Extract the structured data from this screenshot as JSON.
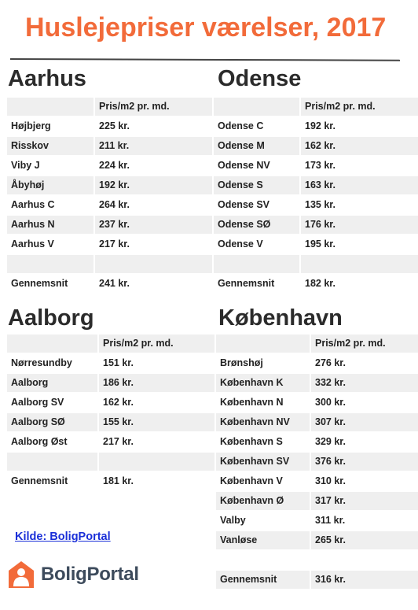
{
  "title": "Huslejepriser værelser, 2017",
  "column_header": "Pris/m2 pr. md.",
  "tables": [
    {
      "city": "Aarhus",
      "rows": [
        {
          "name": "Højbjerg",
          "price": "225 kr."
        },
        {
          "name": "Risskov",
          "price": "211 kr."
        },
        {
          "name": "Viby J",
          "price": "224 kr."
        },
        {
          "name": "Åbyhøj",
          "price": "192 kr."
        },
        {
          "name": "Aarhus C",
          "price": "264 kr."
        },
        {
          "name": "Aarhus N",
          "price": "237 kr."
        },
        {
          "name": "Aarhus V",
          "price": "217 kr."
        },
        {
          "name": "",
          "price": ""
        },
        {
          "name": "Gennemsnit",
          "price": "241 kr."
        }
      ]
    },
    {
      "city": "Odense",
      "rows": [
        {
          "name": "Odense C",
          "price": "192 kr."
        },
        {
          "name": "Odense M",
          "price": "162 kr."
        },
        {
          "name": "Odense NV",
          "price": "173 kr."
        },
        {
          "name": "Odense S",
          "price": "163 kr."
        },
        {
          "name": "Odense SV",
          "price": "135 kr."
        },
        {
          "name": "Odense SØ",
          "price": "176 kr."
        },
        {
          "name": "Odense V",
          "price": "195 kr."
        },
        {
          "name": "",
          "price": ""
        },
        {
          "name": "Gennemsnit",
          "price": "182 kr."
        }
      ]
    },
    {
      "city": "Aalborg",
      "rows": [
        {
          "name": "Nørresundby",
          "price": "151 kr."
        },
        {
          "name": "Aalborg",
          "price": "186 kr."
        },
        {
          "name": "Aalborg SV",
          "price": "162 kr."
        },
        {
          "name": "Aalborg SØ",
          "price": "155 kr."
        },
        {
          "name": "Aalborg Øst",
          "price": "217 kr."
        },
        {
          "name": "",
          "price": ""
        },
        {
          "name": "Gennemsnit",
          "price": "181 kr."
        }
      ]
    },
    {
      "city": "København",
      "rows": [
        {
          "name": "Brønshøj",
          "price": "276 kr."
        },
        {
          "name": "København K",
          "price": "332 kr."
        },
        {
          "name": "København N",
          "price": "300 kr."
        },
        {
          "name": "København NV",
          "price": "307 kr."
        },
        {
          "name": "København S",
          "price": "329 kr."
        },
        {
          "name": "København SV",
          "price": "376 kr."
        },
        {
          "name": "København V",
          "price": "310 kr."
        },
        {
          "name": "København Ø",
          "price": "317 kr."
        },
        {
          "name": "Valby",
          "price": "311 kr."
        },
        {
          "name": "Vanløse",
          "price": "265 kr."
        },
        {
          "name": "",
          "price": ""
        },
        {
          "name": "Gennemsnit",
          "price": "316 kr."
        }
      ]
    }
  ],
  "source_link": "Kilde: BoligPortal",
  "logo": {
    "text": "BoligPortal",
    "icon": "house-person-icon",
    "color": "#f26b3a"
  },
  "colors": {
    "title": "#f26b3a",
    "row_shade": "#efefef",
    "link": "#1a2fd8"
  }
}
